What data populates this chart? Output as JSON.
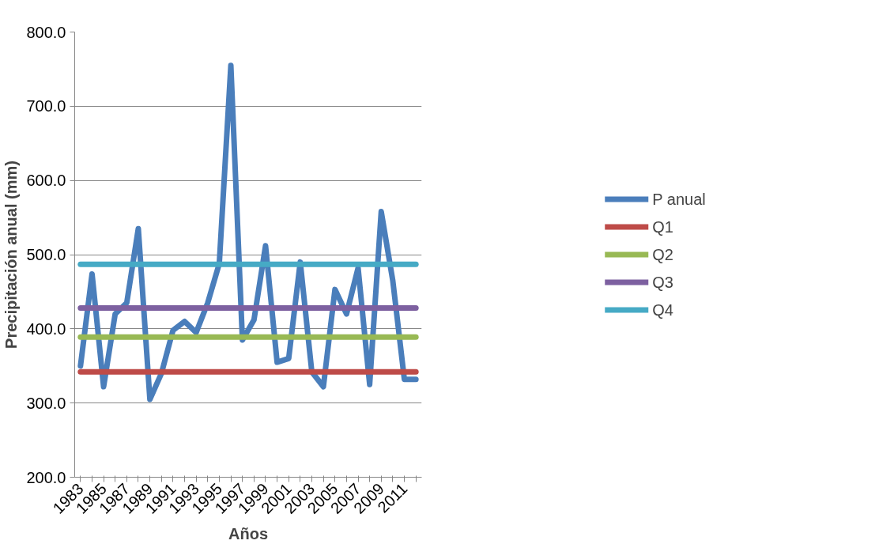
{
  "chart_data": {
    "type": "line",
    "xlabel": "Años",
    "ylabel": "Precipitación anual (mm)",
    "categories": [
      "1983",
      null,
      "1985",
      null,
      "1987",
      null,
      "1989",
      null,
      "1991",
      null,
      "1993",
      null,
      "1995",
      null,
      "1997",
      null,
      "1999",
      null,
      "2001",
      null,
      "2003",
      null,
      "2005",
      null,
      "2007",
      null,
      "2009",
      null,
      "2011",
      null
    ],
    "series": [
      {
        "name": "P anual",
        "color": "#4a7ebb",
        "values": [
          350,
          474,
          322,
          420,
          435,
          535,
          305,
          340,
          398,
          410,
          395,
          435,
          488,
          755,
          385,
          412,
          512,
          355,
          360,
          490,
          342,
          322,
          453,
          420,
          482,
          325,
          558,
          465,
          332,
          332
        ]
      },
      {
        "name": "Q1",
        "color": "#be4b48",
        "values": [
          342,
          342,
          342,
          342,
          342,
          342,
          342,
          342,
          342,
          342,
          342,
          342,
          342,
          342,
          342,
          342,
          342,
          342,
          342,
          342,
          342,
          342,
          342,
          342,
          342,
          342,
          342,
          342,
          342,
          342
        ]
      },
      {
        "name": "Q2",
        "color": "#98b954",
        "values": [
          389,
          389,
          389,
          389,
          389,
          389,
          389,
          389,
          389,
          389,
          389,
          389,
          389,
          389,
          389,
          389,
          389,
          389,
          389,
          389,
          389,
          389,
          389,
          389,
          389,
          389,
          389,
          389,
          389,
          389
        ]
      },
      {
        "name": "Q3",
        "color": "#7d60a0",
        "values": [
          428,
          428,
          428,
          428,
          428,
          428,
          428,
          428,
          428,
          428,
          428,
          428,
          428,
          428,
          428,
          428,
          428,
          428,
          428,
          428,
          428,
          428,
          428,
          428,
          428,
          428,
          428,
          428,
          428,
          428
        ]
      },
      {
        "name": "Q4",
        "color": "#46aac5",
        "values": [
          487,
          487,
          487,
          487,
          487,
          487,
          487,
          487,
          487,
          487,
          487,
          487,
          487,
          487,
          487,
          487,
          487,
          487,
          487,
          487,
          487,
          487,
          487,
          487,
          487,
          487,
          487,
          487,
          487,
          487
        ]
      }
    ],
    "ylim": [
      200,
      800
    ],
    "yticks": [
      {
        "value": 200,
        "label": "200.0"
      },
      {
        "value": 300,
        "label": "300.0"
      },
      {
        "value": 400,
        "label": "400.0"
      },
      {
        "value": 500,
        "label": "500.0"
      },
      {
        "value": 600,
        "label": "600.0"
      },
      {
        "value": 700,
        "label": "700.0"
      },
      {
        "value": 800,
        "label": "800.0"
      }
    ],
    "grid": "y",
    "legend": "right",
    "marker": "none",
    "line_style": "solid"
  }
}
